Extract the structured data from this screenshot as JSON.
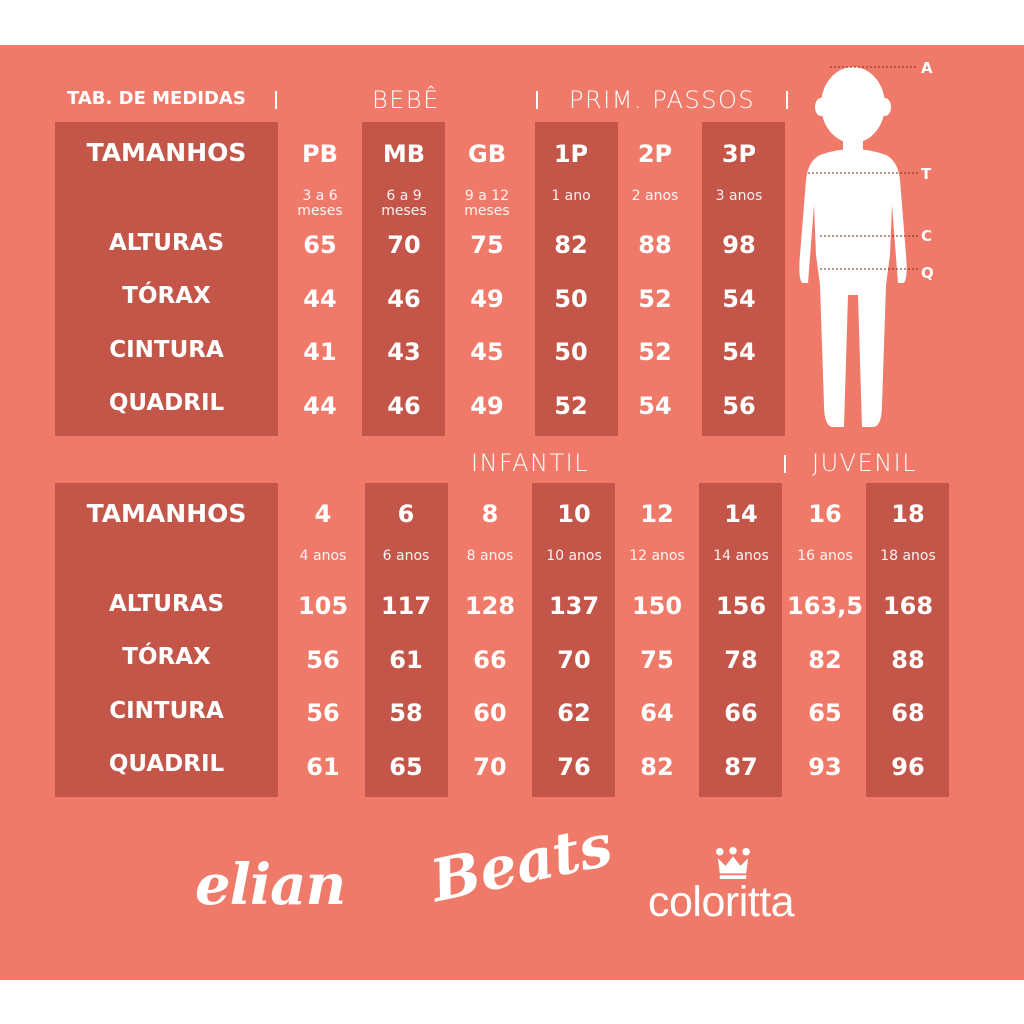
{
  "header": {
    "title": "TAB. DE MEDIDAS",
    "section_bebe": "BEBÊ",
    "section_prim": "PRIM. PASSOS",
    "section_infantil": "INFANTIL",
    "section_juvenil": "JUVENIL"
  },
  "row_labels": {
    "sizes": "TAMANHOS",
    "heights": "ALTURAS",
    "chest": "TÓRAX",
    "waist": "CINTURA",
    "hips": "QUADRIL"
  },
  "table_top": {
    "columns": [
      {
        "size": "PB",
        "age": [
          "3 a 6",
          "meses"
        ],
        "height": "65",
        "chest": "44",
        "waist": "41",
        "hips": "44"
      },
      {
        "size": "MB",
        "age": [
          "6 a 9",
          "meses"
        ],
        "height": "70",
        "chest": "46",
        "waist": "43",
        "hips": "46"
      },
      {
        "size": "GB",
        "age": [
          "9 a 12",
          "meses"
        ],
        "height": "75",
        "chest": "49",
        "waist": "45",
        "hips": "49"
      },
      {
        "size": "1P",
        "age": [
          "1 ano"
        ],
        "height": "82",
        "chest": "50",
        "waist": "50",
        "hips": "52"
      },
      {
        "size": "2P",
        "age": [
          "2 anos"
        ],
        "height": "88",
        "chest": "52",
        "waist": "52",
        "hips": "54"
      },
      {
        "size": "3P",
        "age": [
          "3 anos"
        ],
        "height": "98",
        "chest": "54",
        "waist": "54",
        "hips": "56"
      }
    ]
  },
  "table_bottom": {
    "columns": [
      {
        "size": "4",
        "age": [
          "4 anos"
        ],
        "height": "105",
        "chest": "56",
        "waist": "56",
        "hips": "61"
      },
      {
        "size": "6",
        "age": [
          "6 anos"
        ],
        "height": "117",
        "chest": "61",
        "waist": "58",
        "hips": "65"
      },
      {
        "size": "8",
        "age": [
          "8 anos"
        ],
        "height": "128",
        "chest": "66",
        "waist": "60",
        "hips": "70"
      },
      {
        "size": "10",
        "age": [
          "10 anos"
        ],
        "height": "137",
        "chest": "70",
        "waist": "62",
        "hips": "76"
      },
      {
        "size": "12",
        "age": [
          "12 anos"
        ],
        "height": "150",
        "chest": "75",
        "waist": "64",
        "hips": "82"
      },
      {
        "size": "14",
        "age": [
          "14 anos"
        ],
        "height": "156",
        "chest": "78",
        "waist": "66",
        "hips": "87"
      },
      {
        "size": "16",
        "age": [
          "16 anos"
        ],
        "height": "163,5",
        "chest": "82",
        "waist": "65",
        "hips": "93"
      },
      {
        "size": "18",
        "age": [
          "18 anos"
        ],
        "height": "168",
        "chest": "88",
        "waist": "68",
        "hips": "96"
      }
    ]
  },
  "figure_markers": [
    "A",
    "T",
    "C",
    "Q"
  ],
  "brands": [
    "elian",
    "Beats",
    "coloritta"
  ],
  "colors": {
    "background": "#f07a6a",
    "band": "#c45649",
    "text": "#ffffff"
  }
}
